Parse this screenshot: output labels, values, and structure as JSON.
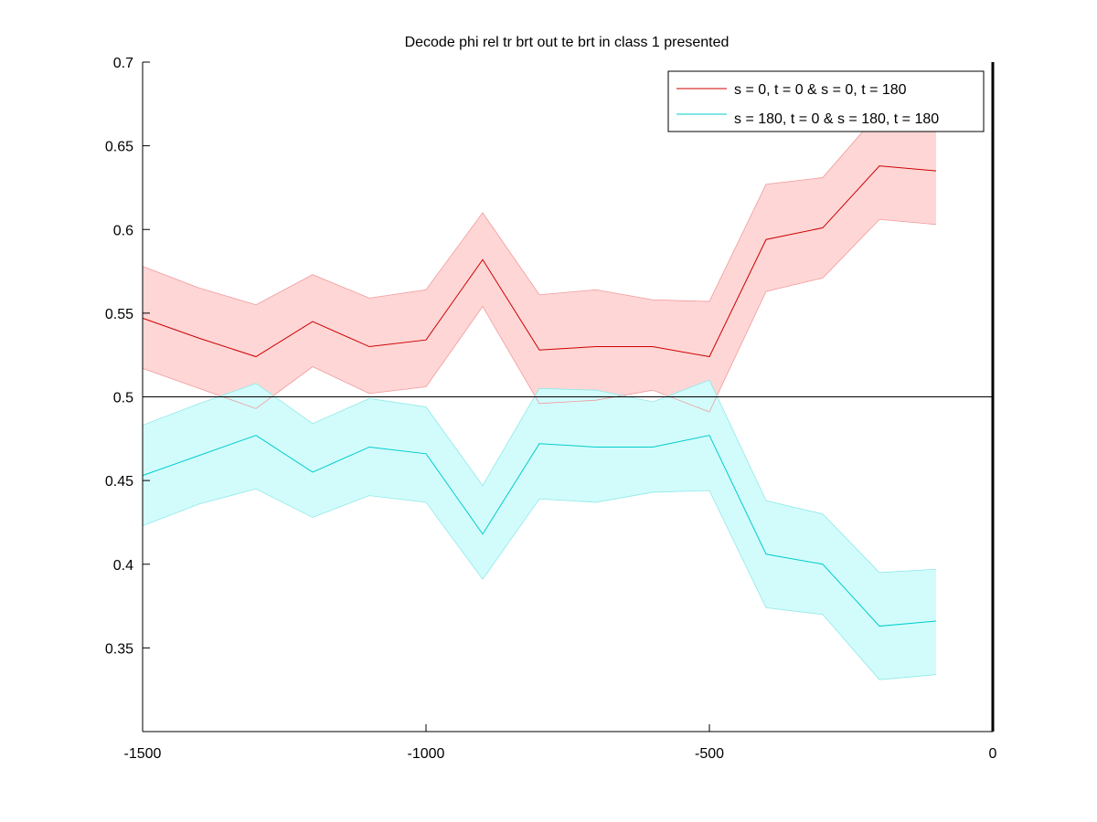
{
  "chart_data": {
    "type": "line",
    "title": "Decode phi rel tr brt out te brt in  class 1 presented",
    "xlabel": "",
    "ylabel": "",
    "xlim": [
      -1500,
      0
    ],
    "ylim": [
      0.3,
      0.7
    ],
    "xticks": [
      -1500,
      -1000,
      -500,
      0
    ],
    "xtick_labels": [
      "-1500",
      "-1000",
      "-500",
      "0"
    ],
    "yticks": [
      0.35,
      0.4,
      0.45,
      0.5,
      0.55,
      0.6,
      0.65,
      0.7
    ],
    "ytick_labels": [
      "0.35",
      "0.4",
      "0.45",
      "0.5",
      "0.55",
      "0.6",
      "0.65",
      "0.7"
    ],
    "grid": false,
    "legend_position": "top-right",
    "reference_line_y": 0.5,
    "x": [
      -1500,
      -1400,
      -1300,
      -1200,
      -1100,
      -1000,
      -900,
      -800,
      -700,
      -600,
      -500,
      -400,
      -300,
      -200,
      -100
    ],
    "series": [
      {
        "name": "s = 0, t = 0 & s = 0, t = 180",
        "color": "#cc0000",
        "band_color": "#ffd6d6",
        "values": [
          0.547,
          0.535,
          0.524,
          0.545,
          0.53,
          0.534,
          0.582,
          0.528,
          0.53,
          0.53,
          0.524,
          0.594,
          0.601,
          0.638,
          0.635
        ],
        "upper": [
          0.578,
          0.565,
          0.555,
          0.573,
          0.559,
          0.564,
          0.61,
          0.561,
          0.564,
          0.558,
          0.557,
          0.627,
          0.631,
          0.67,
          0.667
        ],
        "lower": [
          0.517,
          0.505,
          0.493,
          0.518,
          0.502,
          0.506,
          0.554,
          0.496,
          0.498,
          0.504,
          0.491,
          0.563,
          0.571,
          0.606,
          0.603
        ]
      },
      {
        "name": "s = 180, t = 0 & s = 180, t = 180",
        "color": "#00cccc",
        "band_color": "#d2fcfc",
        "values": [
          0.453,
          0.465,
          0.477,
          0.455,
          0.47,
          0.466,
          0.418,
          0.472,
          0.47,
          0.47,
          0.477,
          0.406,
          0.4,
          0.363,
          0.366
        ],
        "upper": [
          0.483,
          0.496,
          0.508,
          0.484,
          0.499,
          0.494,
          0.447,
          0.505,
          0.504,
          0.497,
          0.51,
          0.438,
          0.43,
          0.395,
          0.397
        ],
        "lower": [
          0.423,
          0.436,
          0.445,
          0.428,
          0.441,
          0.437,
          0.391,
          0.439,
          0.437,
          0.443,
          0.444,
          0.374,
          0.37,
          0.331,
          0.334
        ]
      }
    ]
  }
}
